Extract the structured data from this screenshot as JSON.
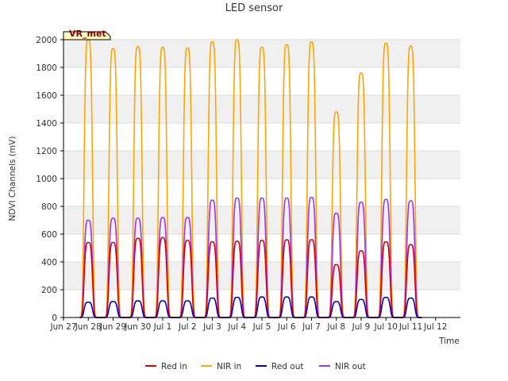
{
  "chart_data": {
    "type": "line",
    "title": "LED sensor",
    "xlabel": "Time",
    "ylabel": "NDVI Channels (mV)",
    "ylim": [
      0,
      2000
    ],
    "xlim": [
      0,
      16
    ],
    "yticks": [
      0,
      200,
      400,
      600,
      800,
      1000,
      1200,
      1400,
      1600,
      1800,
      2000
    ],
    "xtick_labels": [
      "Jun 27",
      "Jun 28",
      "Jun 29",
      "Jun 30",
      "Jul 1",
      "Jul 2",
      "Jul 3",
      "Jul 4",
      "Jul 5",
      "Jul 6",
      "Jul 7",
      "Jul 8",
      "Jul 9",
      "Jul 10",
      "Jul 11",
      "Jul 12"
    ],
    "x_start_label": "Jun 27",
    "badge": {
      "text": "VR_met",
      "bg_color": "#ffffc0",
      "text_color": "#8b0000"
    },
    "background_bands": true,
    "grid": true,
    "legend_position": "bottom",
    "series": [
      {
        "name": "Red in",
        "color": "#dd0000",
        "peaks": [
          [
            1.0,
            540
          ],
          [
            2.0,
            540
          ],
          [
            3.0,
            570
          ],
          [
            4.0,
            575
          ],
          [
            5.0,
            555
          ],
          [
            6.0,
            545
          ],
          [
            7.0,
            550
          ],
          [
            8.0,
            555
          ],
          [
            9.0,
            560
          ],
          [
            10.0,
            560
          ],
          [
            11.0,
            380
          ],
          [
            12.0,
            480
          ],
          [
            13.0,
            545
          ],
          [
            14.0,
            525
          ]
        ]
      },
      {
        "name": "NIR in",
        "color": "#ffa500",
        "peaks": [
          [
            1.0,
            2000
          ],
          [
            2.0,
            1935
          ],
          [
            3.0,
            1950
          ],
          [
            4.0,
            1945
          ],
          [
            5.0,
            1940
          ],
          [
            6.0,
            1985
          ],
          [
            7.0,
            2000
          ],
          [
            8.0,
            1945
          ],
          [
            9.0,
            1965
          ],
          [
            10.0,
            1985
          ],
          [
            11.0,
            1480
          ],
          [
            12.0,
            1760
          ],
          [
            13.0,
            1975
          ],
          [
            14.0,
            1955
          ]
        ]
      },
      {
        "name": "Red out",
        "color": "#0000cc",
        "peaks": [
          [
            1.0,
            110
          ],
          [
            2.0,
            115
          ],
          [
            3.0,
            120
          ],
          [
            4.0,
            120
          ],
          [
            5.0,
            120
          ],
          [
            6.0,
            140
          ],
          [
            7.0,
            145
          ],
          [
            8.0,
            148
          ],
          [
            9.0,
            148
          ],
          [
            10.0,
            148
          ],
          [
            11.0,
            115
          ],
          [
            12.0,
            130
          ],
          [
            13.0,
            145
          ],
          [
            14.0,
            140
          ]
        ]
      },
      {
        "name": "NIR out",
        "color": "#9933ff",
        "peaks": [
          [
            1.0,
            700
          ],
          [
            2.0,
            715
          ],
          [
            3.0,
            715
          ],
          [
            4.0,
            720
          ],
          [
            5.0,
            720
          ],
          [
            6.0,
            845
          ],
          [
            7.0,
            860
          ],
          [
            8.0,
            860
          ],
          [
            9.0,
            860
          ],
          [
            10.0,
            865
          ],
          [
            11.0,
            750
          ],
          [
            12.0,
            830
          ],
          [
            13.0,
            850
          ],
          [
            14.0,
            840
          ]
        ]
      }
    ]
  }
}
